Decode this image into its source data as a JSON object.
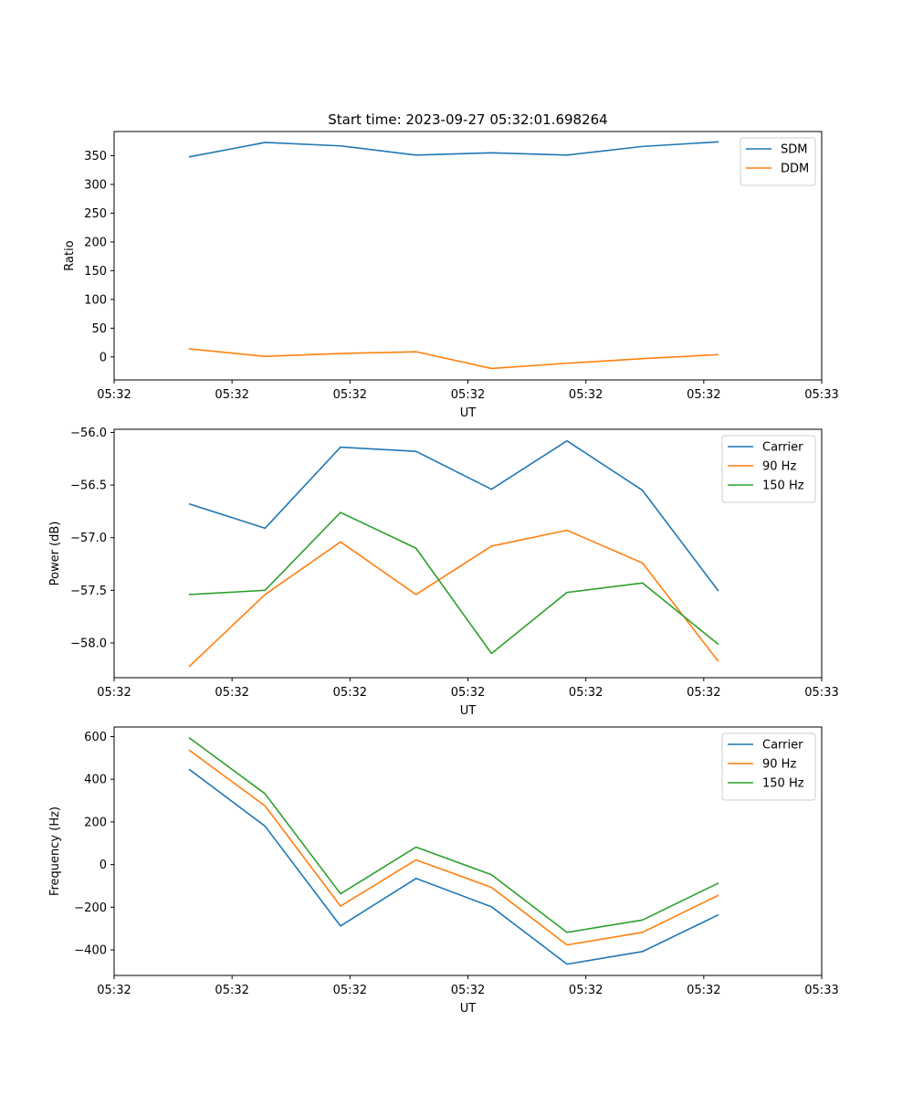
{
  "chart_data": [
    {
      "type": "line",
      "title": "Start time: 2023-09-27 05:32:01.698264",
      "xlabel": "UT",
      "ylabel": "Ratio",
      "x": [
        0.8,
        1.6,
        2.4,
        3.2,
        4.0,
        4.8,
        5.6,
        6.4
      ],
      "xlim": [
        0,
        7.5
      ],
      "xticks": [
        0,
        1.25,
        2.5,
        3.75,
        5.0,
        6.25,
        7.5
      ],
      "xtick_labels": [
        "05:32",
        "05:32",
        "05:32",
        "05:32",
        "05:32",
        "05:32",
        "05:33"
      ],
      "ylim": [
        -40,
        392
      ],
      "yticks": [
        0,
        50,
        100,
        150,
        200,
        250,
        300,
        350
      ],
      "ytick_labels": [
        "0",
        "50",
        "100",
        "150",
        "200",
        "250",
        "300",
        "350"
      ],
      "legend_position": "top-right",
      "series": [
        {
          "name": "SDM",
          "color": "#1f77b4",
          "values": [
            348,
            373,
            367,
            351,
            355,
            351,
            366,
            374
          ]
        },
        {
          "name": "DDM",
          "color": "#ff7f0e",
          "values": [
            14,
            1,
            6,
            9,
            -20,
            -11,
            -3,
            4
          ]
        }
      ]
    },
    {
      "type": "line",
      "title": "",
      "xlabel": "UT",
      "ylabel": "Power (dB)",
      "x": [
        0.8,
        1.6,
        2.4,
        3.2,
        4.0,
        4.8,
        5.6,
        6.4
      ],
      "xlim": [
        0,
        7.5
      ],
      "xticks": [
        0,
        1.25,
        2.5,
        3.75,
        5.0,
        6.25,
        7.5
      ],
      "xtick_labels": [
        "05:32",
        "05:32",
        "05:32",
        "05:32",
        "05:32",
        "05:32",
        "05:33"
      ],
      "ylim": [
        -58.33,
        -55.97
      ],
      "yticks": [
        -58.0,
        -57.5,
        -57.0,
        -56.5,
        -56.0
      ],
      "ytick_labels": [
        "−58.0",
        "−57.5",
        "−57.0",
        "−56.5",
        "−56.0"
      ],
      "legend_position": "top-right",
      "series": [
        {
          "name": "Carrier",
          "color": "#1f77b4",
          "values": [
            -56.68,
            -56.91,
            -56.14,
            -56.18,
            -56.54,
            -56.08,
            -56.55,
            -57.5
          ]
        },
        {
          "name": "90 Hz",
          "color": "#ff7f0e",
          "values": [
            -58.22,
            -57.54,
            -57.04,
            -57.54,
            -57.08,
            -56.93,
            -57.24,
            -58.17
          ]
        },
        {
          "name": "150 Hz",
          "color": "#2ca02c",
          "values": [
            -57.54,
            -57.5,
            -56.76,
            -57.1,
            -58.1,
            -57.52,
            -57.43,
            -58.01
          ]
        }
      ]
    },
    {
      "type": "line",
      "title": "",
      "xlabel": "UT",
      "ylabel": "Frequency (Hz)",
      "x": [
        0.8,
        1.6,
        2.4,
        3.2,
        4.0,
        4.8,
        5.6,
        6.4
      ],
      "xlim": [
        0,
        7.5
      ],
      "xticks": [
        0,
        1.25,
        2.5,
        3.75,
        5.0,
        6.25,
        7.5
      ],
      "xtick_labels": [
        "05:32",
        "05:32",
        "05:32",
        "05:32",
        "05:32",
        "05:32",
        "05:33"
      ],
      "ylim": [
        -520,
        645
      ],
      "yticks": [
        -400,
        -200,
        0,
        200,
        400,
        600
      ],
      "ytick_labels": [
        "−400",
        "−200",
        "0",
        "200",
        "400",
        "600"
      ],
      "legend_position": "top-right",
      "series": [
        {
          "name": "Carrier",
          "color": "#1f77b4",
          "values": [
            445,
            180,
            -288,
            -65,
            -198,
            -467,
            -408,
            -237
          ]
        },
        {
          "name": "90 Hz",
          "color": "#ff7f0e",
          "values": [
            535,
            275,
            -195,
            22,
            -107,
            -377,
            -318,
            -145
          ]
        },
        {
          "name": "150 Hz",
          "color": "#2ca02c",
          "values": [
            593,
            332,
            -137,
            82,
            -48,
            -318,
            -260,
            -88
          ]
        }
      ]
    }
  ]
}
